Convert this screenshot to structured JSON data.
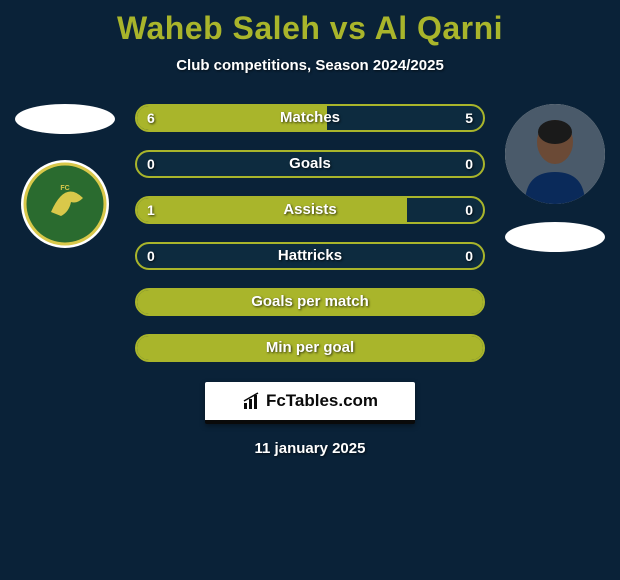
{
  "title": {
    "text": "Waheb Saleh vs Al Qarni",
    "color": "#a9b52b"
  },
  "subtitle": "Club competitions, Season 2024/2025",
  "colors": {
    "accent": "#a9b52b",
    "bar_track": "#0d2b3f",
    "background": "#0a2238",
    "text": "#ffffff"
  },
  "left_side": {
    "ellipse_color": "#ffffff",
    "club_badge": {
      "bg": "#ffffff",
      "inner": "#2a6b2f",
      "accent": "#d9c84a"
    }
  },
  "right_side": {
    "avatar": {
      "bg": "#4a5a6a",
      "skin": "#6b4a36",
      "shirt": "#0a2a5a"
    },
    "ellipse_color": "#ffffff"
  },
  "bars": [
    {
      "label": "Matches",
      "left": "6",
      "right": "5",
      "fill_pct": 55,
      "show_values": true
    },
    {
      "label": "Goals",
      "left": "0",
      "right": "0",
      "fill_pct": 0,
      "show_values": true
    },
    {
      "label": "Assists",
      "left": "1",
      "right": "0",
      "fill_pct": 78,
      "show_values": true
    },
    {
      "label": "Hattricks",
      "left": "0",
      "right": "0",
      "fill_pct": 0,
      "show_values": true
    },
    {
      "label": "Goals per match",
      "left": "",
      "right": "",
      "fill_pct": 100,
      "show_values": false
    },
    {
      "label": "Min per goal",
      "left": "",
      "right": "",
      "fill_pct": 100,
      "show_values": false
    }
  ],
  "footer_brand": "FcTables.com",
  "date": "11 january 2025"
}
